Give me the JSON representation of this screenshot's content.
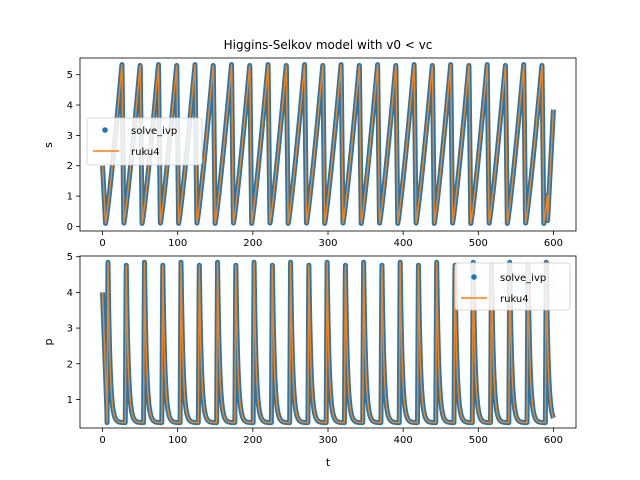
{
  "chart_data": [
    {
      "type": "line",
      "title": "Higgins-Selkov model with v0 < vc",
      "xlabel": "",
      "ylabel": "s",
      "xlim": [
        -30,
        630
      ],
      "ylim": [
        -0.15,
        5.55
      ],
      "x_ticks": [
        0,
        100,
        200,
        300,
        400,
        500,
        600
      ],
      "y_ticks": [
        0,
        1,
        2,
        3,
        4,
        5
      ],
      "legend_position": "center-left",
      "colors": {
        "solve_ivp": "#1f77b4",
        "ruku4": "#ff7f0e"
      },
      "oscillation": {
        "t_start": 0,
        "t_end": 600,
        "period": 24.3,
        "min": 0.1,
        "max": 5.35,
        "initial_value": 2.0,
        "final_value": 3.85
      },
      "series": [
        {
          "name": "solve_ivp",
          "style": "points"
        },
        {
          "name": "ruku4",
          "style": "line"
        }
      ]
    },
    {
      "type": "line",
      "title": "",
      "xlabel": "t",
      "ylabel": "p",
      "xlim": [
        -30,
        630
      ],
      "ylim": [
        0.2,
        5.02
      ],
      "x_ticks": [
        0,
        100,
        200,
        300,
        400,
        500,
        600
      ],
      "y_ticks": [
        1,
        2,
        3,
        4,
        5
      ],
      "legend_position": "upper-right",
      "colors": {
        "solve_ivp": "#1f77b4",
        "ruku4": "#ff7f0e"
      },
      "oscillation": {
        "t_start": 0,
        "t_end": 600,
        "period": 24.3,
        "min": 0.35,
        "max": 4.9,
        "initial_value": 4.0,
        "final_value": 0.4
      },
      "series": [
        {
          "name": "solve_ivp",
          "style": "points"
        },
        {
          "name": "ruku4",
          "style": "line"
        }
      ]
    }
  ]
}
